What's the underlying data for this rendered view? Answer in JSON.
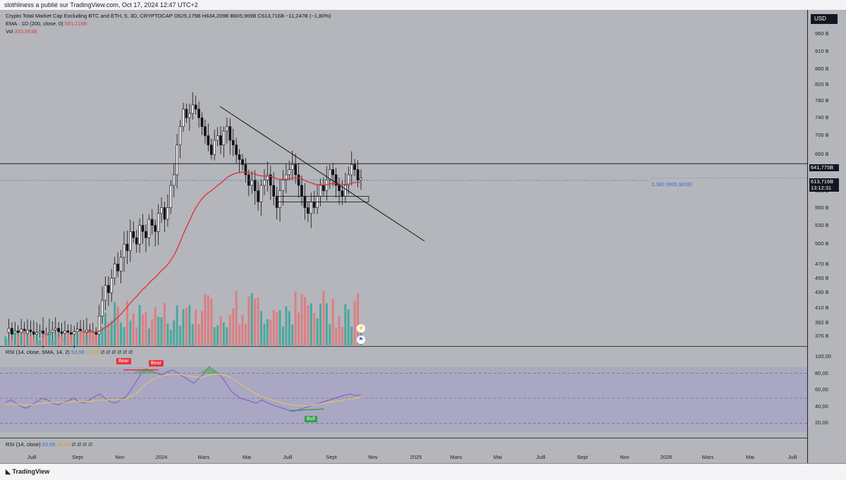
{
  "header": {
    "attribution": "slothliness a publié sur TradingView.com, Oct 17, 2024 12:47 UTC+2"
  },
  "legend": {
    "symbol": "Crypto Total Market Cap Excluding BTC and ETH, 5, 3D, CRYPTOCAP",
    "ohlc": "O625,175B H634,209B B605,969B C613,716B −11,247B (−1,80%)",
    "ema_label": "EMA · 1D (200, close, 0)",
    "ema_value": "591,118B",
    "vol_label": "Vol",
    "vol_value": "333,563B",
    "rsi_label": "RSI (14, close, SMA, 14, 2)",
    "rsi_value": "53,98",
    "rsi_ma_value": "51,38",
    "rsi_zeros": "Ø Ø Ø Ø Ø Ø",
    "rsi2_label": "RSI (14, close)",
    "rsi2_value": "53,98",
    "rsi2_ma_value": "51,38",
    "rsi2_zeros": "Ø Ø Ø Ø"
  },
  "axis": {
    "currency": "USD",
    "price_ticks": [
      "960 B",
      "910 B",
      "860 B",
      "820 B",
      "780 B",
      "740 B",
      "700 B",
      "660 B",
      "590 B",
      "560 B",
      "530 B",
      "500 B",
      "470 B",
      "450 B",
      "430 B",
      "410 B",
      "392 B",
      "376 B"
    ],
    "price_tick_values": [
      960,
      910,
      860,
      820,
      780,
      740,
      700,
      660,
      590,
      560,
      530,
      500,
      470,
      450,
      430,
      410,
      392,
      376
    ],
    "rsi_ticks": [
      "100,00",
      "80,00",
      "60,00",
      "40,00",
      "20,00"
    ],
    "rsi_tick_values": [
      100,
      80,
      60,
      40,
      20
    ],
    "current_price": "613,716B",
    "countdown": "13:12:31",
    "resistance_price": "641,775B",
    "x_labels": [
      "Juill",
      "Sept",
      "Nov",
      "2024",
      "Mars",
      "Mai",
      "Juill",
      "Sept",
      "Nov",
      "2025",
      "Mars",
      "Mai",
      "Juill",
      "Sept",
      "Nov",
      "2026",
      "Mars",
      "Mai",
      "Juill"
    ]
  },
  "annotations": {
    "fib": "0,382 (609,381B)",
    "bear1": "Bear",
    "bear2": "Bear",
    "bull": "Bull"
  },
  "footer": {
    "brand": "TradingView"
  },
  "colors": {
    "background": "#b4b6bc",
    "ema": "#e8323c",
    "rsi": "#7e57c2",
    "rsi_ma": "#e8c65a",
    "vol_up": "#3fa59a",
    "vol_down": "#e0787a",
    "fib": "#3d6ec9"
  },
  "chart_data": {
    "type": "candlestick",
    "title": "Crypto Total Market Cap Excluding BTC and ETH, 5, 3D, CRYPTOCAP",
    "ylim": [
      370,
      990
    ],
    "closes": [
      380,
      385,
      378,
      382,
      380,
      384,
      379,
      383,
      381,
      378,
      380,
      382,
      379,
      377,
      380,
      383,
      385,
      381,
      379,
      382,
      380,
      378,
      381,
      384,
      382,
      380,
      383,
      381,
      380,
      378,
      400,
      420,
      440,
      430,
      450,
      470,
      460,
      480,
      500,
      490,
      520,
      510,
      500,
      530,
      520,
      510,
      540,
      530,
      520,
      550,
      560,
      540,
      560,
      600,
      620,
      680,
      720,
      760,
      740,
      750,
      770,
      760,
      740,
      720,
      700,
      680,
      660,
      690,
      700,
      680,
      710,
      720,
      690,
      680,
      660,
      650,
      640,
      620,
      600,
      610,
      590,
      570,
      600,
      610,
      620,
      600,
      580,
      560,
      590,
      610,
      620,
      630,
      640,
      620,
      600,
      580,
      560,
      550,
      570,
      560,
      580,
      600,
      590,
      610,
      630,
      620,
      600,
      590,
      580,
      600,
      620,
      640,
      630,
      610,
      613.7
    ],
    "ema_points": [
      [
        "Juill",
        380
      ],
      [
        "Nov",
        382
      ],
      [
        "2024",
        420
      ],
      [
        "Mars",
        520
      ],
      [
        "Mai",
        590
      ],
      [
        "Juill",
        605
      ],
      [
        "Sept",
        591
      ]
    ],
    "resistance": 641.775,
    "fib_0382": 609.381,
    "rsi_values": [
      45,
      48,
      44,
      40,
      38,
      42,
      46,
      50,
      48,
      44,
      42,
      45,
      47,
      50,
      46,
      44,
      48,
      52,
      55,
      50,
      46,
      44,
      48,
      52,
      60,
      70,
      80,
      85,
      82,
      80,
      78,
      82,
      84,
      80,
      76,
      72,
      68,
      74,
      80,
      88,
      82,
      78,
      70,
      60,
      54,
      50,
      48,
      46,
      44,
      48,
      45,
      42,
      40,
      38,
      36,
      34,
      36,
      38,
      40,
      42,
      44,
      46,
      48,
      50,
      52,
      54,
      55,
      53,
      54
    ],
    "rsi_ma_values": [
      42,
      43,
      43,
      42,
      42,
      42,
      43,
      44,
      45,
      45,
      45,
      45,
      45,
      46,
      46,
      46,
      46,
      47,
      48,
      48,
      48,
      48,
      48,
      49,
      52,
      56,
      62,
      68,
      72,
      75,
      77,
      78,
      79,
      79,
      78,
      77,
      76,
      75,
      76,
      78,
      79,
      79,
      78,
      75,
      71,
      67,
      63,
      59,
      55,
      52,
      50,
      48,
      46,
      44,
      43,
      42,
      41,
      41,
      41,
      42,
      43,
      44,
      45,
      46,
      47,
      48,
      49,
      50,
      51.38
    ]
  }
}
